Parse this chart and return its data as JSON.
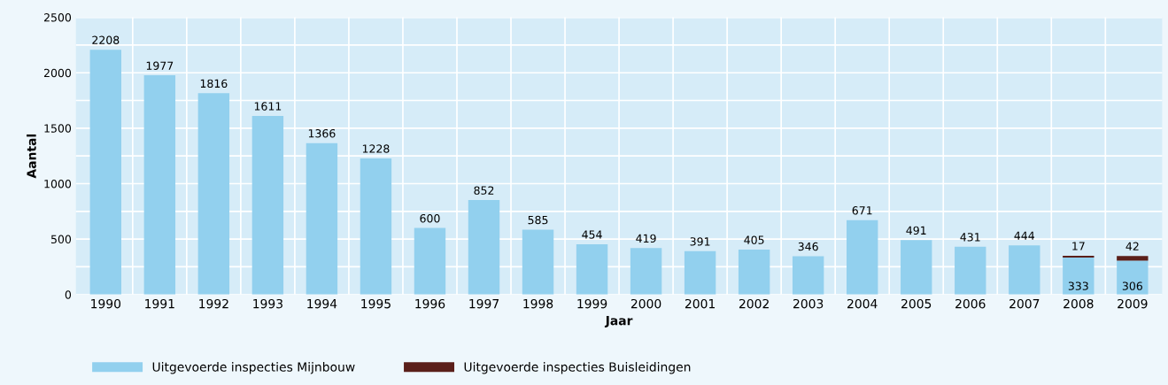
{
  "chart_data": {
    "type": "bar",
    "stacked": true,
    "xlabel": "Jaar",
    "ylabel": "Aantal",
    "categories": [
      "1990",
      "1991",
      "1992",
      "1993",
      "1994",
      "1995",
      "1996",
      "1997",
      "1998",
      "1999",
      "2000",
      "2001",
      "2002",
      "2003",
      "2004",
      "2005",
      "2006",
      "2007",
      "2008",
      "2009"
    ],
    "series": [
      {
        "name": "Uitgevoerde inspecties Mijnbouw",
        "color": "#92d0ee",
        "values": [
          2208,
          1977,
          1816,
          1611,
          1366,
          1228,
          600,
          852,
          585,
          454,
          419,
          391,
          405,
          346,
          671,
          491,
          431,
          444,
          333,
          306
        ]
      },
      {
        "name": "Uitgevoerde inspecties Buisleidingen",
        "color": "#5a1f1a",
        "values": [
          null,
          null,
          null,
          null,
          null,
          null,
          null,
          null,
          null,
          null,
          null,
          null,
          null,
          null,
          null,
          null,
          null,
          null,
          17,
          42
        ]
      }
    ],
    "ylim": [
      0,
      2500
    ],
    "yticks": [
      0,
      {
        "value": 250,
        "label": null
      },
      500,
      {
        "value": 750,
        "label": null
      },
      1000,
      {
        "value": 1250,
        "label": null
      },
      1500,
      {
        "value": 1750,
        "label": null
      },
      2000,
      {
        "value": 2250,
        "label": null
      },
      2500
    ],
    "grid": true,
    "data_labels": true,
    "legend": "bottom left"
  }
}
